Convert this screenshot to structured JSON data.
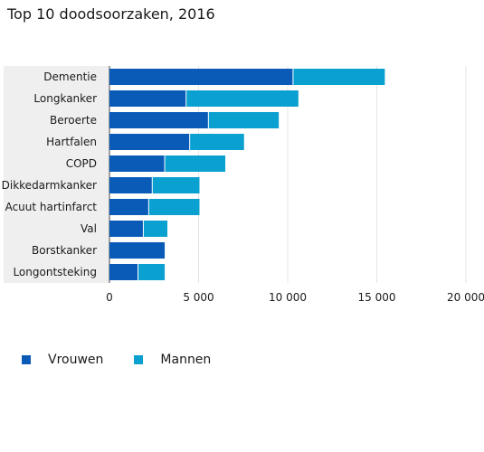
{
  "chart_data": {
    "type": "bar",
    "orientation": "horizontal",
    "stacked": true,
    "title": "Top 10 doodsoorzaken, 2016",
    "xlabel": "",
    "ylabel": "",
    "xlim": [
      0,
      20000
    ],
    "xticks": [
      0,
      5000,
      10000,
      15000,
      20000
    ],
    "xtick_labels": [
      "0",
      "5 000",
      "10 000",
      "15 000",
      "20 000"
    ],
    "grid": true,
    "legend_position": "bottom-left",
    "categories": [
      "Dementie",
      "Longkanker",
      "Beroerte",
      "Hartfalen",
      "COPD",
      "Dikkedarmkanker",
      "Acuut hartinfarct",
      "Val",
      "Borstkanker",
      "Longontsteking"
    ],
    "series": [
      {
        "name": "Vrouwen",
        "color": "#0a5bb8",
        "values": [
          10300,
          4300,
          5550,
          4500,
          3100,
          2400,
          2200,
          1900,
          3100,
          1600
        ]
      },
      {
        "name": "Mannen",
        "color": "#0aa0d0",
        "values": [
          5150,
          6300,
          3950,
          3050,
          3400,
          2650,
          2850,
          1350,
          0,
          1500
        ]
      }
    ]
  }
}
